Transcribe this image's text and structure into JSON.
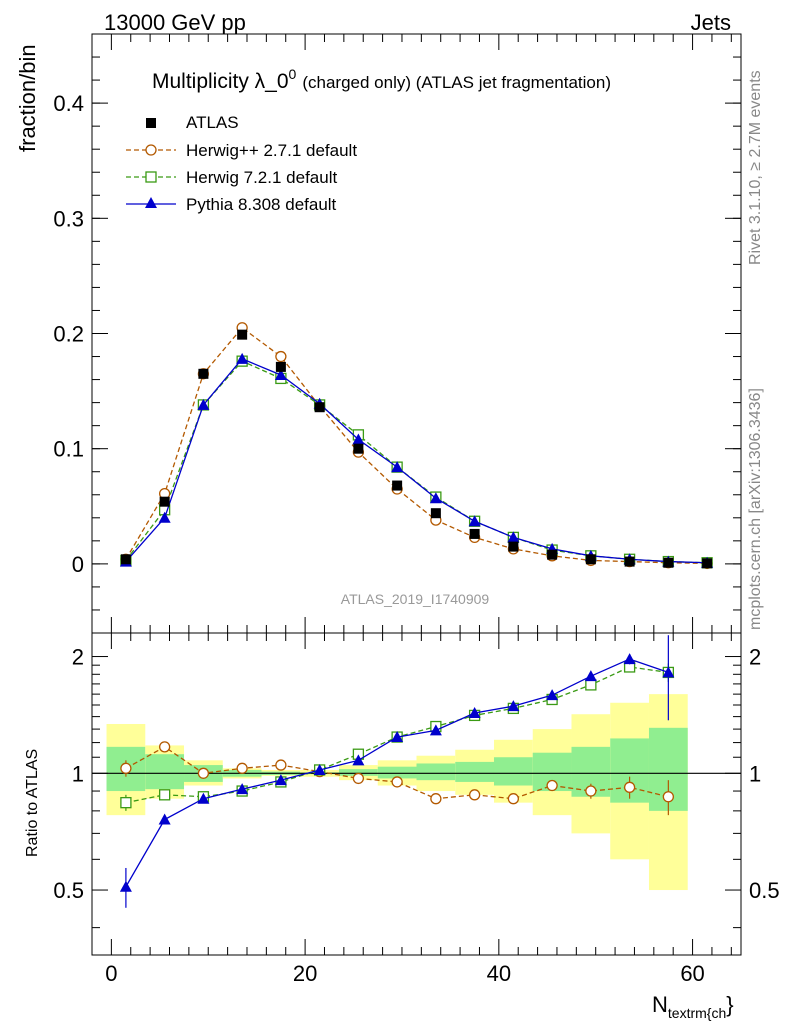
{
  "header": {
    "energy": "13000 GeV pp",
    "category": "Jets"
  },
  "side_labels": {
    "rivet": "Rivet 3.1.10, ≥ 2.7M events",
    "mcplots": "mcplots.cern.ch [arXiv:1306.3436]"
  },
  "chart_data": [
    {
      "type": "scatter",
      "title_main": "Multiplicity λ_0",
      "title_sup": "0",
      "title_extra": "(charged only) (ATLAS jet fragmentation)",
      "ylabel": "fraction/bin",
      "watermark": "ATLAS_2019_I1740909",
      "xlim": [
        -2,
        65
      ],
      "ylim": [
        -0.06,
        0.46
      ],
      "yticks": [
        0,
        0.1,
        0.2,
        0.3,
        0.4
      ],
      "ytick_labels": [
        "0",
        "0.1",
        "0.2",
        "0.3",
        "0.4"
      ],
      "x": [
        1.5,
        5.5,
        9.5,
        13.5,
        17.5,
        21.5,
        25.5,
        29.5,
        33.5,
        37.5,
        41.5,
        45.5,
        49.5,
        53.5,
        57.5,
        61.5
      ],
      "series": [
        {
          "name": "ATLAS",
          "marker": "square-filled",
          "color": "#000000",
          "values": [
            0.004,
            0.054,
            0.165,
            0.199,
            0.171,
            0.136,
            0.1,
            0.068,
            0.044,
            0.026,
            0.015,
            0.008,
            0.004,
            0.002,
            0.001,
            0.0005
          ]
        },
        {
          "name": "Herwig++ 2.7.1 default",
          "marker": "circle-open",
          "color": "#b35900",
          "dash": "5,3",
          "values": [
            0.004,
            0.061,
            0.165,
            0.205,
            0.18,
            0.137,
            0.097,
            0.065,
            0.038,
            0.023,
            0.013,
            0.007,
            0.003,
            0.002,
            0.001,
            0.0004
          ]
        },
        {
          "name": "Herwig 7.2.1 default",
          "marker": "square-open",
          "color": "#3a9a14",
          "dash": "5,3",
          "values": [
            0.003,
            0.047,
            0.138,
            0.176,
            0.161,
            0.138,
            0.112,
            0.084,
            0.058,
            0.037,
            0.023,
            0.012,
            0.007,
            0.004,
            0.002,
            0.001
          ]
        },
        {
          "name": "Pythia 8.308 default",
          "marker": "triangle-filled",
          "color": "#0000cc",
          "values": [
            0.002,
            0.04,
            0.138,
            0.178,
            0.164,
            0.139,
            0.108,
            0.084,
            0.057,
            0.037,
            0.023,
            0.013,
            0.007,
            0.004,
            0.002,
            0.001
          ]
        }
      ]
    },
    {
      "type": "scatter",
      "ylabel": "Ratio to ATLAS",
      "xlabel": "N",
      "xlabel_sub": "textrm{ch",
      "xlabel_tail": "}",
      "xlim": [
        -2,
        65
      ],
      "ylim": [
        0.34,
        2.3
      ],
      "xticks": [
        0,
        20,
        40,
        60
      ],
      "xtick_labels": [
        "0",
        "20",
        "40",
        "60"
      ],
      "yticks": [
        0.5,
        1,
        2
      ],
      "ytick_labels": [
        "0.5",
        "1",
        "2"
      ],
      "bands": {
        "bin_edges": [
          -0.5,
          3.5,
          7.5,
          11.5,
          15.5,
          19.5,
          23.5,
          27.5,
          31.5,
          35.5,
          39.5,
          43.5,
          47.5,
          51.5,
          55.5,
          59.5
        ],
        "stat_color": "#90ee90",
        "total_color": "#ffff99",
        "stat_lo": [
          0.9,
          0.91,
          0.95,
          0.98,
          0.99,
          0.995,
          0.985,
          0.97,
          0.96,
          0.95,
          0.93,
          0.9,
          0.87,
          0.84,
          0.8
        ],
        "stat_hi": [
          1.17,
          1.12,
          1.05,
          1.02,
          1.01,
          1.005,
          1.025,
          1.04,
          1.06,
          1.07,
          1.1,
          1.13,
          1.17,
          1.23,
          1.31
        ],
        "total_lo": [
          0.78,
          0.86,
          0.93,
          0.97,
          0.985,
          0.98,
          0.96,
          0.93,
          0.9,
          0.88,
          0.84,
          0.78,
          0.7,
          0.6,
          0.5
        ],
        "total_hi": [
          1.34,
          1.18,
          1.08,
          1.03,
          1.02,
          1.02,
          1.05,
          1.08,
          1.11,
          1.15,
          1.22,
          1.3,
          1.42,
          1.52,
          1.6
        ]
      },
      "x": [
        1.5,
        5.5,
        9.5,
        13.5,
        17.5,
        21.5,
        25.5,
        29.5,
        33.5,
        37.5,
        41.5,
        45.5,
        49.5,
        53.5,
        57.5
      ],
      "series": [
        {
          "name": "Herwig++ 2.7.1 default",
          "marker": "circle-open",
          "color": "#b35900",
          "dash": "5,3",
          "values": [
            1.03,
            1.17,
            1.0,
            1.03,
            1.05,
            1.01,
            0.97,
            0.95,
            0.86,
            0.88,
            0.86,
            0.93,
            0.9,
            0.92,
            0.87
          ],
          "err": [
            0.05,
            0.02,
            0.01,
            0.01,
            0.01,
            0.01,
            0.01,
            0.01,
            0.01,
            0.01,
            0.02,
            0.03,
            0.04,
            0.06,
            0.09
          ]
        },
        {
          "name": "Herwig 7.2.1 default",
          "marker": "square-open",
          "color": "#3a9a14",
          "dash": "5,3",
          "values": [
            0.84,
            0.88,
            0.87,
            0.9,
            0.95,
            1.02,
            1.12,
            1.24,
            1.32,
            1.41,
            1.47,
            1.55,
            1.69,
            1.88,
            1.82
          ],
          "err": [
            0.04,
            0.02,
            0.01,
            0.01,
            0.01,
            0.01,
            0.01,
            0.01,
            0.01,
            0.01,
            0.02,
            0.03,
            0.04,
            0.06,
            0.1
          ]
        },
        {
          "name": "Pythia 8.308 default",
          "marker": "triangle-filled",
          "color": "#0000cc",
          "values": [
            0.51,
            0.76,
            0.86,
            0.91,
            0.96,
            1.02,
            1.08,
            1.24,
            1.29,
            1.43,
            1.49,
            1.59,
            1.78,
            1.97,
            1.82
          ],
          "err": [
            0.06,
            0.02,
            0.01,
            0.01,
            0.01,
            0.01,
            0.01,
            0.01,
            0.01,
            0.01,
            0.02,
            0.03,
            0.04,
            0.06,
            0.45
          ]
        }
      ]
    }
  ]
}
